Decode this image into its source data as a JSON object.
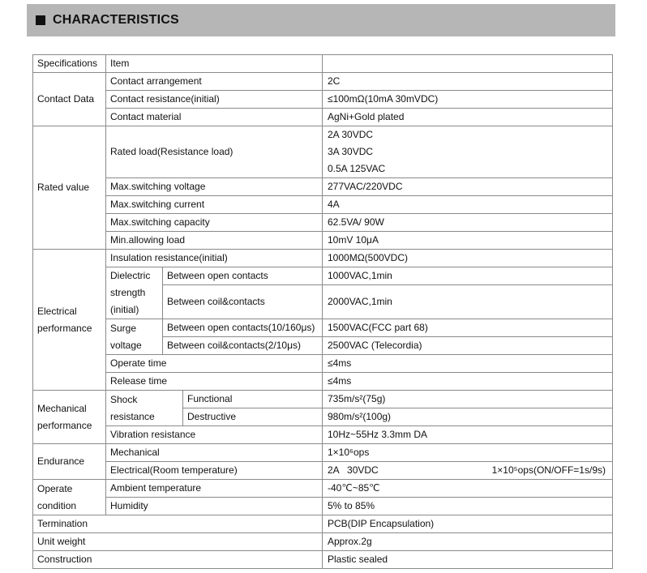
{
  "header": {
    "title": "CHARACTERISTICS"
  },
  "table": {
    "head": [
      "Specifications",
      "Item"
    ],
    "contact": {
      "label": "Contact Data",
      "rows": [
        [
          "Contact arrangement",
          "2C"
        ],
        [
          "Contact resistance(initial)",
          "≤100mΩ(10mA 30mVDC)"
        ],
        [
          "Contact material",
          "AgNi+Gold plated"
        ]
      ]
    },
    "rated": {
      "label": "Rated value",
      "load": "Rated load(Resistance load)",
      "load_values": [
        "2A 30VDC",
        "3A 30VDC",
        "0.5A 125VAC"
      ],
      "rows": [
        [
          "Max.switching voltage",
          "277VAC/220VDC"
        ],
        [
          "Max.switching current",
          "4A"
        ],
        [
          "Max.switching capacity",
          "62.5VA/ 90W"
        ],
        [
          "Min.allowing load",
          "10mV 10μA"
        ]
      ]
    },
    "electrical": {
      "label": [
        "Electrical",
        "performance"
      ],
      "insulation": [
        "Insulation resistance(initial)",
        "1000MΩ(500VDC)"
      ],
      "dielectric": {
        "label": [
          "Dielectric",
          "strength",
          "(initial)"
        ],
        "rows": [
          [
            "Between open contacts",
            "1000VAC,1min"
          ],
          [
            "Between coil&contacts",
            "2000VAC,1min"
          ]
        ]
      },
      "surge": {
        "label": [
          "Surge",
          "voltage"
        ],
        "rows": [
          [
            "Between open contacts(10/160μs)",
            "1500VAC(FCC part 68)"
          ],
          [
            "Between coil&contacts(2/10μs)",
            "2500VAC (Telecordia)"
          ]
        ]
      },
      "rows": [
        [
          "Operate time",
          "≤4ms"
        ],
        [
          "Release time",
          "≤4ms"
        ]
      ]
    },
    "mechanical": {
      "label": [
        "Mechanical",
        "performance"
      ],
      "shock": {
        "label": [
          "Shock",
          "resistance"
        ],
        "rows": [
          [
            "Functional",
            "735m/s²(75g)"
          ],
          [
            "Destructive",
            "980m/s²(100g)"
          ]
        ]
      },
      "vibration": [
        "Vibration resistance",
        "10Hz~55Hz 3.3mm DA"
      ]
    },
    "endurance": {
      "label": "Endurance",
      "rows": [
        [
          "Mechanical",
          "1×10⁶ops"
        ],
        [
          "Electrical(Room temperature)",
          "2A   30VDC",
          "1×10⁵ops(ON/OFF=1s/9s)"
        ]
      ]
    },
    "operate": {
      "label": [
        "Operate",
        "condition"
      ],
      "rows": [
        [
          "Ambient temperature",
          "-40℃~85℃"
        ],
        [
          "Humidity",
          "5% to 85%"
        ]
      ]
    },
    "rows": [
      [
        "Termination",
        "PCB(DIP Encapsulation)"
      ],
      [
        "Unit weight",
        "Approx.2g"
      ],
      [
        "Construction",
        "Plastic sealed"
      ]
    ]
  }
}
